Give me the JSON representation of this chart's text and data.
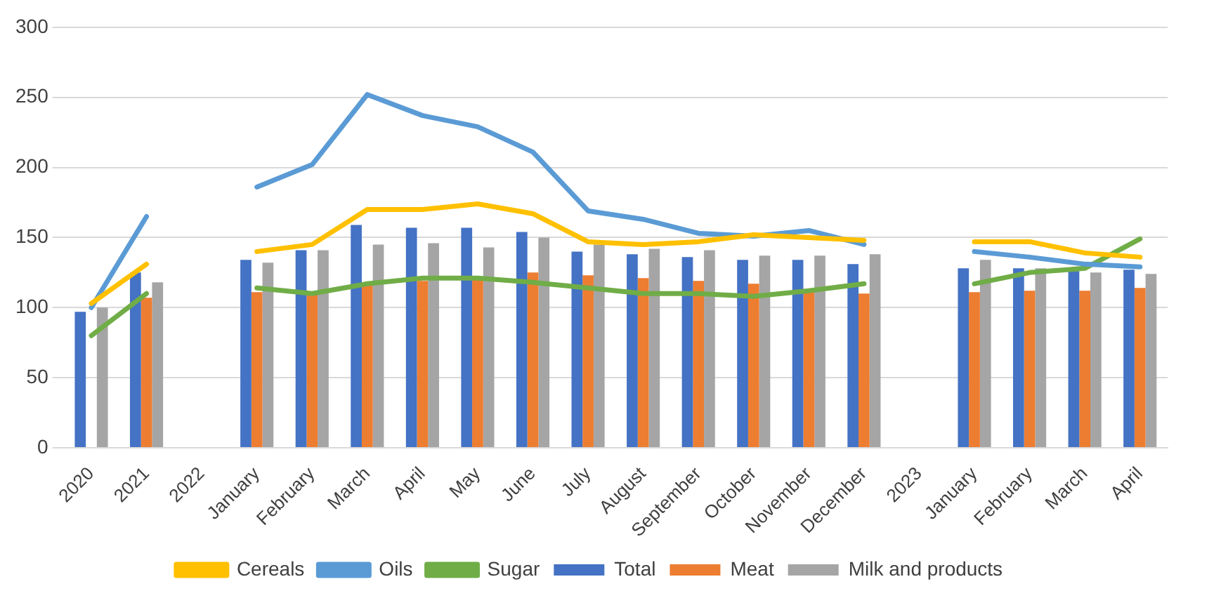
{
  "chart_data": {
    "type": "bar",
    "categories": [
      "2020",
      "2021",
      "2022",
      "January",
      "February",
      "March",
      "April",
      "May",
      "June",
      "July",
      "August",
      "September",
      "October",
      "November",
      "December",
      "2023",
      "January",
      "February",
      "March",
      "April"
    ],
    "series": [
      {
        "name": "Total",
        "color": "#4472c4",
        "values": [
          97,
          125,
          null,
          134,
          141,
          159,
          157,
          157,
          154,
          140,
          138,
          136,
          134,
          134,
          131,
          null,
          128,
          128,
          126,
          127
        ]
      },
      {
        "name": "Meat",
        "color": "#ed7d31",
        "values": [
          null,
          107,
          null,
          111,
          110,
          116,
          119,
          122,
          125,
          123,
          121,
          119,
          117,
          113,
          110,
          null,
          111,
          112,
          112,
          114
        ]
      },
      {
        "name": "Milk and products",
        "color": "#a5a5a5",
        "values": [
          100,
          118,
          null,
          132,
          141,
          145,
          146,
          143,
          150,
          145,
          142,
          141,
          137,
          137,
          138,
          null,
          134,
          128,
          125,
          124
        ]
      },
      {
        "name": "Cereals",
        "type": "line",
        "color": "#ffc000",
        "values": [
          103,
          131,
          null,
          140,
          145,
          170,
          170,
          174,
          167,
          147,
          145,
          147,
          152,
          150,
          148,
          null,
          147,
          147,
          139,
          136
        ]
      },
      {
        "name": "Oils",
        "type": "line",
        "color": "#5b9bd5",
        "values": [
          100,
          165,
          null,
          186,
          202,
          252,
          237,
          229,
          211,
          169,
          163,
          153,
          151,
          155,
          145,
          null,
          140,
          136,
          131,
          129
        ]
      },
      {
        "name": "Sugar",
        "type": "line",
        "color": "#70ad47",
        "values": [
          80,
          110,
          null,
          114,
          110,
          117,
          121,
          121,
          118,
          114,
          110,
          110,
          108,
          112,
          117,
          null,
          117,
          125,
          128,
          149
        ]
      }
    ],
    "ylim": [
      0,
      300
    ],
    "yticks": [
      0,
      50,
      100,
      150,
      200,
      250,
      300
    ],
    "grid": "y",
    "legend": "bottom",
    "marker": "none"
  }
}
